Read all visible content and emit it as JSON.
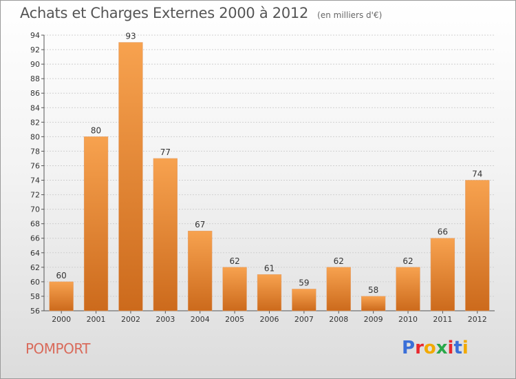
{
  "chart_data": {
    "type": "bar",
    "title": "Achats et Charges Externes 2000 à 2012",
    "subtitle": "(en milliers d'€)",
    "categories": [
      "2000",
      "2001",
      "2002",
      "2003",
      "2004",
      "2005",
      "2006",
      "2007",
      "2008",
      "2009",
      "2010",
      "2011",
      "2012"
    ],
    "values": [
      60,
      80,
      93,
      77,
      67,
      62,
      61,
      59,
      62,
      58,
      62,
      66,
      74
    ],
    "ylim": [
      56,
      94
    ],
    "yticks": [
      56,
      58,
      60,
      62,
      64,
      66,
      68,
      70,
      72,
      74,
      76,
      78,
      80,
      82,
      84,
      86,
      88,
      90,
      92,
      94
    ],
    "grid": true,
    "colors": {
      "bar_top": "#f7a24f",
      "bar_bottom": "#cc6a1c"
    }
  },
  "footer": {
    "commune": "POMPORT",
    "brand": "Proxiti",
    "brand_colors": [
      "#3a6fd8",
      "#e8282e",
      "#f2a900",
      "#2aa84a",
      "#e8282e",
      "#3a6fd8",
      "#f2a900"
    ]
  }
}
